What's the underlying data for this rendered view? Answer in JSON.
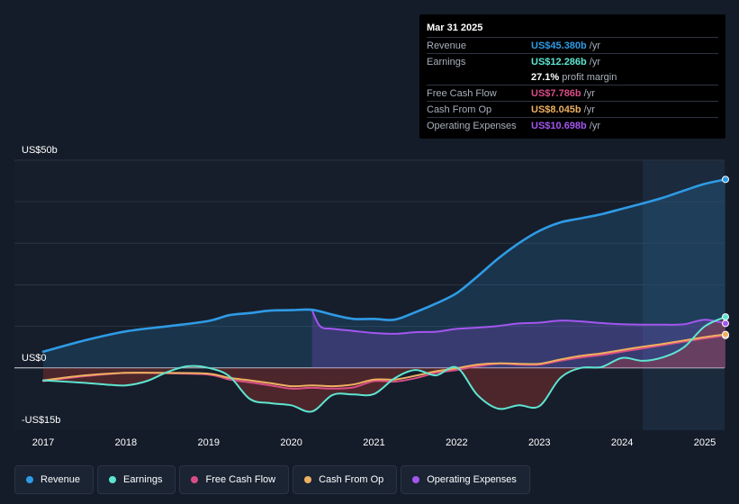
{
  "tooltip": {
    "date": "Mar 31 2025",
    "rows": [
      {
        "label": "Revenue",
        "value": "US$45.380b",
        "unit": "/yr",
        "color": "#2f9be6"
      },
      {
        "label": "Earnings",
        "value": "US$12.286b",
        "unit": "/yr",
        "color": "#5ee5d1"
      },
      {
        "label": "",
        "value": "27.1%",
        "unit": "profit margin",
        "color": "#ffffff"
      },
      {
        "label": "Free Cash Flow",
        "value": "US$7.786b",
        "unit": "/yr",
        "color": "#d94d86"
      },
      {
        "label": "Cash From Op",
        "value": "US$8.045b",
        "unit": "/yr",
        "color": "#eeb060"
      },
      {
        "label": "Operating Expenses",
        "value": "US$10.698b",
        "unit": "/yr",
        "color": "#a356f0"
      }
    ]
  },
  "legend": [
    {
      "label": "Revenue",
      "color": "#2f9be6"
    },
    {
      "label": "Earnings",
      "color": "#5ee5d1"
    },
    {
      "label": "Free Cash Flow",
      "color": "#d94d86"
    },
    {
      "label": "Cash From Op",
      "color": "#eeb060"
    },
    {
      "label": "Operating Expenses",
      "color": "#a356f0"
    }
  ],
  "chart_data": {
    "type": "line",
    "title": "",
    "ylabel": "",
    "ylim": [
      -15,
      50
    ],
    "y_tick_labels": [
      "US$50b",
      "US$0",
      "-US$15b"
    ],
    "x_tick_labels": [
      "2017",
      "2018",
      "2019",
      "2020",
      "2021",
      "2022",
      "2023",
      "2024",
      "2025"
    ],
    "x_ticks": [
      2017,
      2018,
      2019,
      2020,
      2021,
      2022,
      2023,
      2024,
      2025
    ],
    "xlim": [
      2016.75,
      2025.25
    ],
    "forecast_start": 2024.25,
    "highlight_start": 2020.25,
    "series": [
      {
        "name": "Revenue",
        "color": "#2f9be6",
        "x": [
          2017,
          2017.5,
          2018,
          2018.5,
          2019,
          2019.25,
          2019.5,
          2019.75,
          2020,
          2020.25,
          2020.5,
          2020.75,
          2021,
          2021.25,
          2021.5,
          2021.75,
          2022,
          2022.25,
          2022.5,
          2022.75,
          2023,
          2023.25,
          2023.5,
          2023.75,
          2024,
          2024.25,
          2024.5,
          2024.75,
          2025,
          2025.25
        ],
        "values": [
          3.9,
          6.6,
          8.8,
          10.0,
          11.3,
          12.7,
          13.2,
          13.8,
          13.9,
          14.0,
          12.8,
          11.8,
          11.8,
          11.6,
          13.4,
          15.5,
          18.0,
          22.0,
          26.3,
          30.0,
          33.0,
          35.0,
          36.0,
          37.0,
          38.3,
          39.6,
          41.0,
          42.7,
          44.3,
          45.38
        ]
      },
      {
        "name": "Earnings",
        "color": "#5ee5d1",
        "x": [
          2017,
          2017.5,
          2017.75,
          2018,
          2018.25,
          2018.5,
          2018.75,
          2019,
          2019.25,
          2019.5,
          2019.75,
          2020,
          2020.25,
          2020.5,
          2020.75,
          2021,
          2021.25,
          2021.5,
          2021.75,
          2022,
          2022.25,
          2022.5,
          2022.75,
          2023,
          2023.25,
          2023.5,
          2023.75,
          2024,
          2024.25,
          2024.5,
          2024.75,
          2025,
          2025.25
        ],
        "values": [
          -3.0,
          -3.6,
          -4.0,
          -4.2,
          -3.2,
          -1.0,
          0.4,
          0.0,
          -2.0,
          -7.5,
          -8.5,
          -9.0,
          -10.5,
          -6.5,
          -6.4,
          -6.3,
          -2.5,
          -0.5,
          -1.8,
          0.1,
          -6.5,
          -9.8,
          -9.0,
          -9.2,
          -2.5,
          0.0,
          0.2,
          2.4,
          1.7,
          2.6,
          5.0,
          10.0,
          12.286
        ]
      },
      {
        "name": "Free Cash Flow",
        "color": "#d94d86",
        "x": [
          2017,
          2017.5,
          2018,
          2018.5,
          2019,
          2019.25,
          2019.5,
          2019.75,
          2020,
          2020.25,
          2020.5,
          2020.75,
          2021,
          2021.25,
          2021.5,
          2021.75,
          2022,
          2022.25,
          2022.5,
          2022.75,
          2023,
          2023.25,
          2023.5,
          2023.75,
          2024,
          2024.25,
          2024.5,
          2024.75,
          2025,
          2025.25
        ],
        "values": [
          -3.2,
          -2.0,
          -1.2,
          -1.3,
          -1.6,
          -2.8,
          -3.5,
          -4.2,
          -5.0,
          -4.8,
          -5.0,
          -4.7,
          -3.2,
          -3.3,
          -2.5,
          -1.2,
          -0.5,
          0.4,
          1.0,
          0.8,
          0.8,
          1.7,
          2.5,
          3.1,
          3.9,
          4.7,
          5.5,
          6.3,
          7.1,
          7.786
        ]
      },
      {
        "name": "Cash From Op",
        "color": "#eeb060",
        "x": [
          2017,
          2017.5,
          2018,
          2018.5,
          2019,
          2019.25,
          2019.5,
          2019.75,
          2020,
          2020.25,
          2020.5,
          2020.75,
          2021,
          2021.25,
          2021.5,
          2021.75,
          2022,
          2022.25,
          2022.5,
          2022.75,
          2023,
          2023.25,
          2023.5,
          2023.75,
          2024,
          2024.25,
          2024.5,
          2024.75,
          2025,
          2025.25
        ],
        "values": [
          -3.0,
          -1.8,
          -1.2,
          -1.2,
          -1.4,
          -2.4,
          -3.0,
          -3.7,
          -4.4,
          -4.2,
          -4.4,
          -4.0,
          -2.8,
          -2.8,
          -1.9,
          -0.8,
          -0.1,
          0.8,
          1.1,
          1.0,
          1.0,
          2.0,
          2.9,
          3.5,
          4.3,
          5.1,
          5.8,
          6.6,
          7.4,
          8.045
        ]
      },
      {
        "name": "Operating Expenses",
        "color": "#a356f0",
        "x": [
          2020.25,
          2020.35,
          2020.5,
          2020.75,
          2021,
          2021.25,
          2021.5,
          2021.75,
          2022,
          2022.25,
          2022.5,
          2022.75,
          2023,
          2023.25,
          2023.5,
          2023.75,
          2024,
          2024.25,
          2024.5,
          2024.75,
          2025,
          2025.25
        ],
        "values": [
          13.9,
          10.0,
          9.4,
          8.9,
          8.4,
          8.2,
          8.6,
          8.7,
          9.4,
          9.7,
          10.1,
          10.7,
          10.9,
          11.4,
          11.2,
          10.8,
          10.5,
          10.4,
          10.4,
          10.5,
          11.6,
          10.698
        ]
      }
    ]
  }
}
